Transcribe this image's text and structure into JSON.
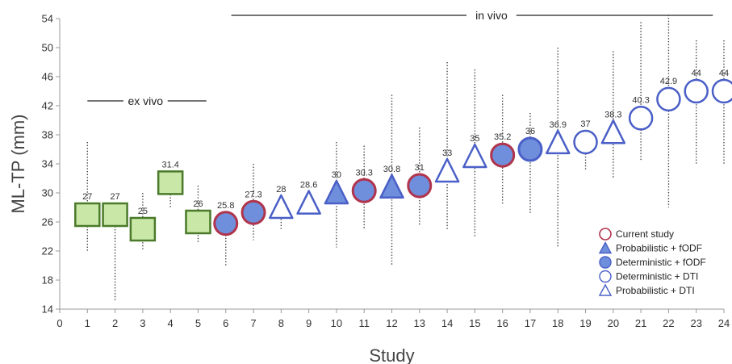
{
  "colors": {
    "exvivo_fill": "#c9e8a8",
    "exvivo_stroke": "#4a7a2a",
    "blue": "#4a5fc7",
    "blue_fill": "#6f8fdc",
    "current": "#b0344c",
    "text": "#333333",
    "errorbar": "#444444"
  },
  "chart_data": {
    "type": "scatter",
    "xlabel": "Study",
    "ylabel": "ML-TP (mm)",
    "xlim": [
      0,
      24
    ],
    "ylim": [
      14,
      54
    ],
    "xticks": [
      0,
      1,
      2,
      3,
      4,
      5,
      6,
      7,
      8,
      9,
      10,
      11,
      12,
      13,
      14,
      15,
      16,
      17,
      18,
      19,
      20,
      21,
      22,
      23,
      24
    ],
    "yticks": [
      14,
      18,
      22,
      26,
      30,
      34,
      38,
      42,
      46,
      50,
      54
    ],
    "grid": false,
    "groups": [
      {
        "label": "ex vivo",
        "x_range": [
          1,
          5
        ]
      },
      {
        "label": "in vivo",
        "x_range": [
          6,
          24
        ]
      }
    ],
    "legend": {
      "position": "bottom-right",
      "entries": [
        {
          "label": "Current study",
          "marker": "circle-current"
        },
        {
          "label": "Probabilistic + fODF",
          "marker": "triangle-filled"
        },
        {
          "label": "Deterministic + fODF",
          "marker": "circle-filled"
        },
        {
          "label": "Deterministic + DTI",
          "marker": "circle-open"
        },
        {
          "label": "Probabilistic + DTI",
          "marker": "triangle-open"
        }
      ]
    },
    "points": [
      {
        "x": 1,
        "y": 27,
        "label": "27",
        "marker": "square",
        "err": [
          22,
          37
        ]
      },
      {
        "x": 2,
        "y": 27,
        "label": "27",
        "marker": "square",
        "err": [
          15,
          27
        ]
      },
      {
        "x": 3,
        "y": 25,
        "label": "25",
        "marker": "square",
        "err": [
          22,
          30
        ]
      },
      {
        "x": 4,
        "y": 31.4,
        "label": "31.4",
        "marker": "square",
        "err": [
          28,
          31.4
        ]
      },
      {
        "x": 5,
        "y": 26,
        "label": "26",
        "marker": "square",
        "err": [
          23,
          31
        ]
      },
      {
        "x": 6,
        "y": 25.8,
        "label": "25.8",
        "marker": "circle-current",
        "err": [
          20,
          25.8
        ]
      },
      {
        "x": 7,
        "y": 27.3,
        "label": "27.3",
        "marker": "circle-current",
        "err": [
          23.5,
          34
        ]
      },
      {
        "x": 8,
        "y": 28,
        "label": "28",
        "marker": "triangle-open",
        "err": [
          25,
          28
        ]
      },
      {
        "x": 9,
        "y": 28.6,
        "label": "28.6",
        "marker": "triangle-open",
        "err": [
          28.6,
          28.6
        ]
      },
      {
        "x": 10,
        "y": 30,
        "label": "30",
        "marker": "triangle-filled",
        "err": [
          22.5,
          37
        ]
      },
      {
        "x": 11,
        "y": 30.3,
        "label": "30.3",
        "marker": "circle-current",
        "err": [
          25,
          36.5
        ]
      },
      {
        "x": 12,
        "y": 30.8,
        "label": "30.8",
        "marker": "triangle-filled",
        "err": [
          20,
          43.5
        ]
      },
      {
        "x": 13,
        "y": 31,
        "label": "31",
        "marker": "circle-current",
        "err": [
          25.5,
          39
        ]
      },
      {
        "x": 14,
        "y": 33,
        "label": "33",
        "marker": "triangle-open",
        "err": [
          25,
          48
        ]
      },
      {
        "x": 15,
        "y": 35,
        "label": "35",
        "marker": "triangle-open",
        "err": [
          24,
          47
        ]
      },
      {
        "x": 16,
        "y": 35.2,
        "label": "35.2",
        "marker": "circle-current",
        "err": [
          28.5,
          43.5
        ]
      },
      {
        "x": 17,
        "y": 36,
        "label": "36",
        "marker": "circle-filled",
        "err": [
          27,
          41
        ]
      },
      {
        "x": 18,
        "y": 36.9,
        "label": "36.9",
        "marker": "triangle-open",
        "err": [
          22.5,
          50
        ]
      },
      {
        "x": 19,
        "y": 37,
        "label": "37",
        "marker": "circle-open",
        "err": [
          33,
          37
        ]
      },
      {
        "x": 20,
        "y": 38.3,
        "label": "38.3",
        "marker": "triangle-open",
        "err": [
          32,
          49.5
        ]
      },
      {
        "x": 21,
        "y": 40.3,
        "label": "40.3",
        "marker": "circle-open",
        "err": [
          34.5,
          53.5
        ]
      },
      {
        "x": 22,
        "y": 42.9,
        "label": "42.9",
        "marker": "circle-open",
        "err": [
          28,
          54.5
        ]
      },
      {
        "x": 23,
        "y": 44,
        "label": "44",
        "marker": "circle-open",
        "err": [
          34,
          51
        ]
      },
      {
        "x": 24,
        "y": 44,
        "label": "44",
        "marker": "circle-open",
        "err": [
          34,
          51
        ]
      }
    ]
  }
}
